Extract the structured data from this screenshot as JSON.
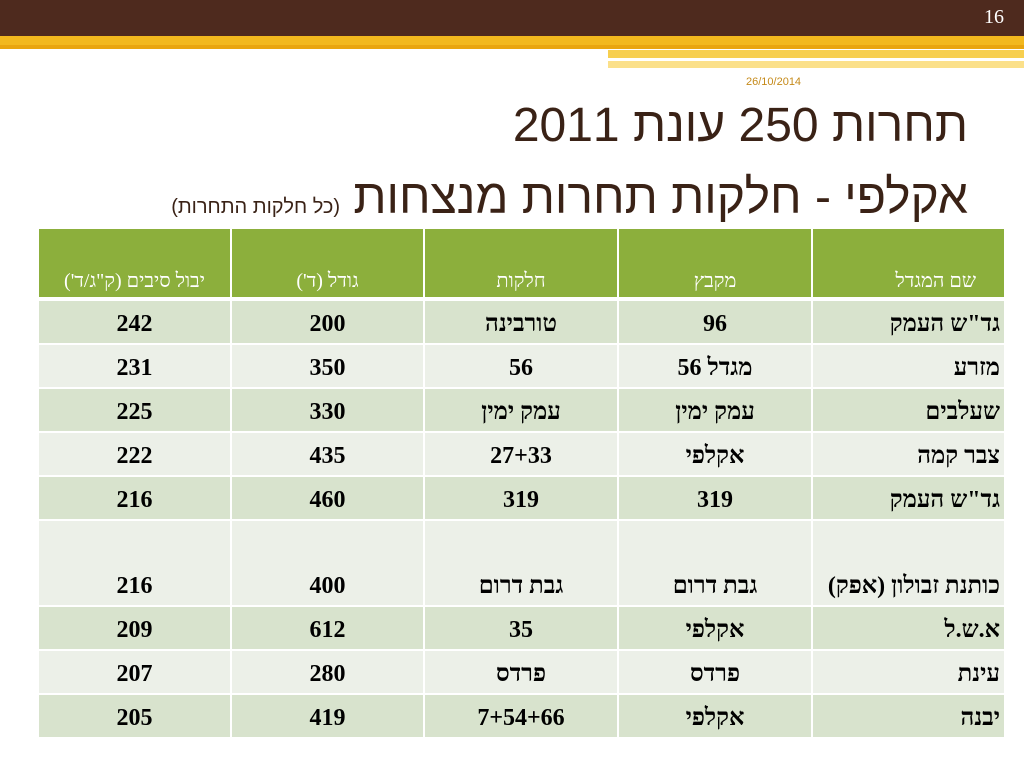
{
  "slide": {
    "number": "16",
    "date": "26/10/2014",
    "title_line1": "תחרות 250  עונת 2011",
    "title_line2_main": "אקלפי - חלקות תחרות מנצחות",
    "title_line2_note": "(כל חלקות התחרות)"
  },
  "colors": {
    "top_band": "#4e2a1e",
    "accent_gold": "#f2b81e",
    "header_green": "#8caf3c",
    "row_dark": "#d8e3cd",
    "row_light": "#ecf0e8",
    "title_text": "#3a2216"
  },
  "table": {
    "headers": {
      "grower": "שם המגדל",
      "block": "מקבץ",
      "plots": "חלקות",
      "size": "גודל (ד')",
      "yield": "יבול סיבים (ק\"ג/ד')"
    },
    "rows": [
      {
        "grower": "גד\"ש העמק",
        "block": "96",
        "plots": "טורבינה",
        "size": "200",
        "yield": "242"
      },
      {
        "grower": "מזרע",
        "block": "מגדל 56",
        "plots": "56",
        "size": "350",
        "yield": "231"
      },
      {
        "grower": "שעלבים",
        "block": "עמק ימין",
        "plots": "עמק ימין",
        "size": "330",
        "yield": "225"
      },
      {
        "grower": "צבר קמה",
        "block": "אקלפי",
        "plots": "27+33",
        "size": "435",
        "yield": "222"
      },
      {
        "grower": "גד\"ש העמק",
        "block": "319",
        "plots": "319",
        "size": "460",
        "yield": "216"
      },
      {
        "grower": "כותנת זבולון (אפק)",
        "block": "גבת דרום",
        "plots": "גבת דרום",
        "size": "400",
        "yield": "216"
      },
      {
        "grower": "א.ש.ל",
        "block": "אקלפי",
        "plots": "35",
        "size": "612",
        "yield": "209"
      },
      {
        "grower": "עינת",
        "block": "פרדס",
        "plots": "פרדס",
        "size": "280",
        "yield": "207"
      },
      {
        "grower": "יבנה",
        "block": "אקלפי",
        "plots": "7+54+66",
        "size": "419",
        "yield": "205"
      }
    ]
  }
}
